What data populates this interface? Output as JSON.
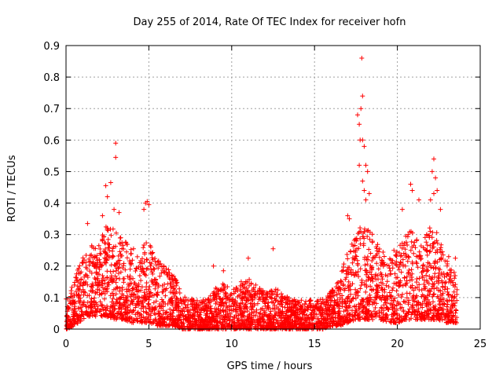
{
  "chart_data": {
    "type": "scatter",
    "title": "Day 255 of 2014, Rate Of TEC Index for receiver hofn",
    "xlabel": "GPS time / hours",
    "ylabel": "ROTI / TECUs",
    "xlim": [
      0,
      25
    ],
    "ylim": [
      0,
      0.9
    ],
    "xticks": [
      0,
      5,
      10,
      15,
      20,
      25
    ],
    "yticks": [
      0,
      0.1,
      0.2,
      0.3,
      0.4,
      0.5,
      0.6,
      0.7,
      0.8,
      0.9
    ],
    "xtick_labels": [
      "0",
      "5",
      "10",
      "15",
      "20",
      "25"
    ],
    "ytick_labels": [
      "0",
      "0.1",
      "0.2",
      "0.3",
      "0.4",
      "0.5",
      "0.6",
      "0.7",
      "0.8",
      "0.9"
    ],
    "grid": true,
    "marker": "+",
    "marker_color": "#ff0000",
    "envelope": {
      "hours": [
        0,
        0.5,
        1,
        1.5,
        2,
        2.5,
        3,
        3.5,
        4,
        4.5,
        5,
        5.5,
        6,
        6.5,
        7,
        7.5,
        8,
        8.5,
        9,
        9.5,
        10,
        10.5,
        11,
        11.5,
        12,
        12.5,
        13,
        13.5,
        14,
        14.5,
        15,
        15.5,
        16,
        16.5,
        17,
        17.5,
        18,
        18.5,
        19,
        19.5,
        20,
        20.5,
        21,
        21.5,
        22,
        22.5,
        23,
        23.5
      ],
      "typical_max": [
        0.1,
        0.15,
        0.25,
        0.27,
        0.3,
        0.33,
        0.32,
        0.28,
        0.26,
        0.26,
        0.28,
        0.22,
        0.2,
        0.17,
        0.12,
        0.1,
        0.09,
        0.1,
        0.13,
        0.15,
        0.12,
        0.15,
        0.16,
        0.14,
        0.12,
        0.13,
        0.12,
        0.1,
        0.09,
        0.1,
        0.09,
        0.1,
        0.12,
        0.16,
        0.25,
        0.3,
        0.35,
        0.3,
        0.25,
        0.24,
        0.26,
        0.3,
        0.32,
        0.28,
        0.34,
        0.3,
        0.22,
        0.18
      ],
      "typical_min": [
        0.0,
        0.01,
        0.03,
        0.04,
        0.04,
        0.04,
        0.03,
        0.03,
        0.02,
        0.02,
        0.02,
        0.01,
        0.01,
        0.01,
        0.0,
        0.0,
        0.0,
        0.0,
        0.0,
        0.0,
        0.0,
        0.0,
        0.0,
        0.0,
        0.0,
        0.0,
        0.0,
        0.0,
        0.0,
        0.0,
        0.0,
        0.0,
        0.01,
        0.01,
        0.02,
        0.03,
        0.03,
        0.03,
        0.03,
        0.02,
        0.02,
        0.03,
        0.03,
        0.03,
        0.03,
        0.03,
        0.02,
        0.02
      ]
    },
    "peak_points": [
      {
        "x": 3.0,
        "y": 0.59
      },
      {
        "x": 3.0,
        "y": 0.545
      },
      {
        "x": 2.4,
        "y": 0.455
      },
      {
        "x": 2.7,
        "y": 0.465
      },
      {
        "x": 2.5,
        "y": 0.42
      },
      {
        "x": 2.9,
        "y": 0.38
      },
      {
        "x": 3.2,
        "y": 0.37
      },
      {
        "x": 2.2,
        "y": 0.36
      },
      {
        "x": 4.9,
        "y": 0.405
      },
      {
        "x": 4.8,
        "y": 0.4
      },
      {
        "x": 5.0,
        "y": 0.395
      },
      {
        "x": 4.7,
        "y": 0.38
      },
      {
        "x": 1.3,
        "y": 0.335
      },
      {
        "x": 8.9,
        "y": 0.2
      },
      {
        "x": 9.5,
        "y": 0.185
      },
      {
        "x": 11.0,
        "y": 0.225
      },
      {
        "x": 12.5,
        "y": 0.255
      },
      {
        "x": 17.0,
        "y": 0.36
      },
      {
        "x": 17.1,
        "y": 0.35
      },
      {
        "x": 17.85,
        "y": 0.86
      },
      {
        "x": 17.9,
        "y": 0.74
      },
      {
        "x": 17.6,
        "y": 0.68
      },
      {
        "x": 17.7,
        "y": 0.65
      },
      {
        "x": 17.8,
        "y": 0.7
      },
      {
        "x": 17.75,
        "y": 0.6
      },
      {
        "x": 17.9,
        "y": 0.6
      },
      {
        "x": 18.0,
        "y": 0.58
      },
      {
        "x": 17.7,
        "y": 0.52
      },
      {
        "x": 18.1,
        "y": 0.52
      },
      {
        "x": 18.2,
        "y": 0.5
      },
      {
        "x": 17.9,
        "y": 0.47
      },
      {
        "x": 18.0,
        "y": 0.44
      },
      {
        "x": 18.3,
        "y": 0.43
      },
      {
        "x": 18.1,
        "y": 0.41
      },
      {
        "x": 20.8,
        "y": 0.46
      },
      {
        "x": 20.9,
        "y": 0.44
      },
      {
        "x": 21.3,
        "y": 0.41
      },
      {
        "x": 20.3,
        "y": 0.38
      },
      {
        "x": 22.2,
        "y": 0.54
      },
      {
        "x": 22.1,
        "y": 0.5
      },
      {
        "x": 22.3,
        "y": 0.48
      },
      {
        "x": 22.4,
        "y": 0.44
      },
      {
        "x": 22.2,
        "y": 0.43
      },
      {
        "x": 22.0,
        "y": 0.41
      },
      {
        "x": 22.6,
        "y": 0.38
      },
      {
        "x": 23.1,
        "y": 0.23
      },
      {
        "x": 23.5,
        "y": 0.225
      }
    ]
  }
}
